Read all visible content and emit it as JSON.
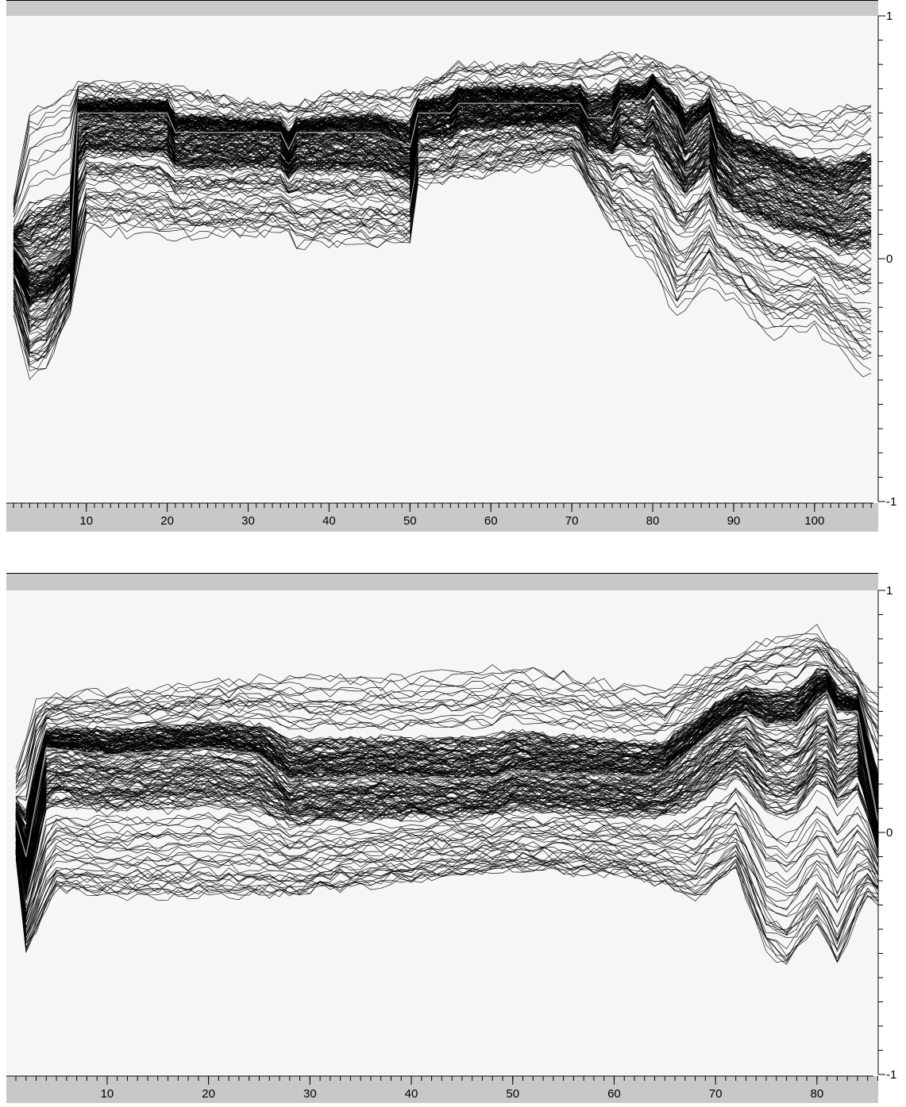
{
  "chart_data": [
    {
      "type": "line",
      "title": "",
      "xlabel": "",
      "ylabel": "",
      "xlim": [
        1,
        107
      ],
      "ylim": [
        -1,
        1
      ],
      "xticks": [
        10,
        20,
        30,
        40,
        50,
        60,
        70,
        80,
        90,
        100
      ],
      "yticks": [
        1,
        0,
        -1
      ],
      "ytick_labels": [
        "1",
        "0",
        "-1"
      ],
      "grid": false,
      "legend": "none",
      "line_color": "#000000",
      "mean_line_color": "#9a9a9a",
      "background": "#f6f6f6",
      "band_color": "#c8c8c8",
      "series_count": 200,
      "mean_profile": {
        "x": [
          1,
          3,
          6,
          8,
          9,
          20,
          21,
          34,
          35,
          36,
          46,
          50,
          51,
          55,
          56,
          71,
          72,
          75,
          76,
          79,
          80,
          83,
          84,
          87,
          88,
          90,
          95,
          98,
          100,
          103,
          106
        ],
        "y": [
          0.05,
          -0.05,
          -0.02,
          0.02,
          0.6,
          0.6,
          0.52,
          0.52,
          0.45,
          0.52,
          0.52,
          0.46,
          0.6,
          0.6,
          0.64,
          0.64,
          0.58,
          0.58,
          0.65,
          0.65,
          0.7,
          0.58,
          0.5,
          0.6,
          0.48,
          0.4,
          0.35,
          0.3,
          0.28,
          0.25,
          0.3
        ]
      },
      "envelope_upper": {
        "x": [
          1,
          3,
          8,
          20,
          35,
          40,
          50,
          56,
          70,
          75,
          80,
          87,
          95,
          100,
          106
        ],
        "y": [
          0.25,
          0.62,
          0.72,
          0.71,
          0.62,
          0.68,
          0.7,
          0.8,
          0.8,
          0.85,
          0.82,
          0.75,
          0.62,
          0.6,
          0.65
        ]
      },
      "envelope_lower": {
        "x": [
          1,
          3,
          5,
          8,
          10,
          20,
          35,
          36,
          50,
          51,
          56,
          70,
          75,
          80,
          83,
          87,
          95,
          100,
          106
        ],
        "y": [
          -0.22,
          -0.48,
          -0.45,
          -0.22,
          0.12,
          0.08,
          0.1,
          0.05,
          0.05,
          0.3,
          0.32,
          0.4,
          0.12,
          -0.05,
          -0.25,
          -0.1,
          -0.32,
          -0.28,
          -0.48
        ]
      }
    },
    {
      "type": "line",
      "title": "",
      "xlabel": "",
      "ylabel": "",
      "xlim": [
        1,
        86
      ],
      "ylim": [
        -1,
        1
      ],
      "xticks": [
        10,
        20,
        30,
        40,
        50,
        60,
        70,
        80
      ],
      "yticks": [
        1,
        0,
        -1
      ],
      "ytick_labels": [
        "1",
        "0",
        "-1"
      ],
      "grid": false,
      "legend": "none",
      "line_color": "#000000",
      "mean_line_color": "#9a9a9a",
      "background": "#f6f6f6",
      "band_color": "#c8c8c8",
      "series_count": 200,
      "mean_profile": {
        "x": [
          1,
          2,
          4,
          10,
          20,
          25,
          28,
          35,
          48,
          50,
          63,
          65,
          70,
          73,
          75,
          78,
          80,
          81,
          82,
          84,
          86
        ],
        "y": [
          0.05,
          -0.1,
          0.35,
          0.32,
          0.35,
          0.32,
          0.22,
          0.23,
          0.22,
          0.25,
          0.23,
          0.25,
          0.43,
          0.5,
          0.45,
          0.45,
          0.55,
          0.58,
          0.5,
          0.5,
          0.05
        ]
      },
      "envelope_upper": {
        "x": [
          1,
          3,
          8,
          16,
          26,
          40,
          50,
          60,
          65,
          75,
          80,
          85
        ],
        "y": [
          0.25,
          0.55,
          0.58,
          0.6,
          0.65,
          0.65,
          0.7,
          0.62,
          0.6,
          0.8,
          0.85,
          0.6
        ]
      },
      "envelope_lower": {
        "x": [
          1,
          2,
          3,
          5,
          10,
          25,
          35,
          50,
          60,
          65,
          68,
          72,
          75,
          77,
          80,
          82,
          85
        ],
        "y": [
          -0.1,
          -0.52,
          -0.45,
          -0.28,
          -0.3,
          -0.3,
          -0.25,
          -0.18,
          -0.2,
          -0.25,
          -0.32,
          -0.2,
          -0.55,
          -0.62,
          -0.45,
          -0.62,
          -0.3
        ]
      }
    }
  ]
}
